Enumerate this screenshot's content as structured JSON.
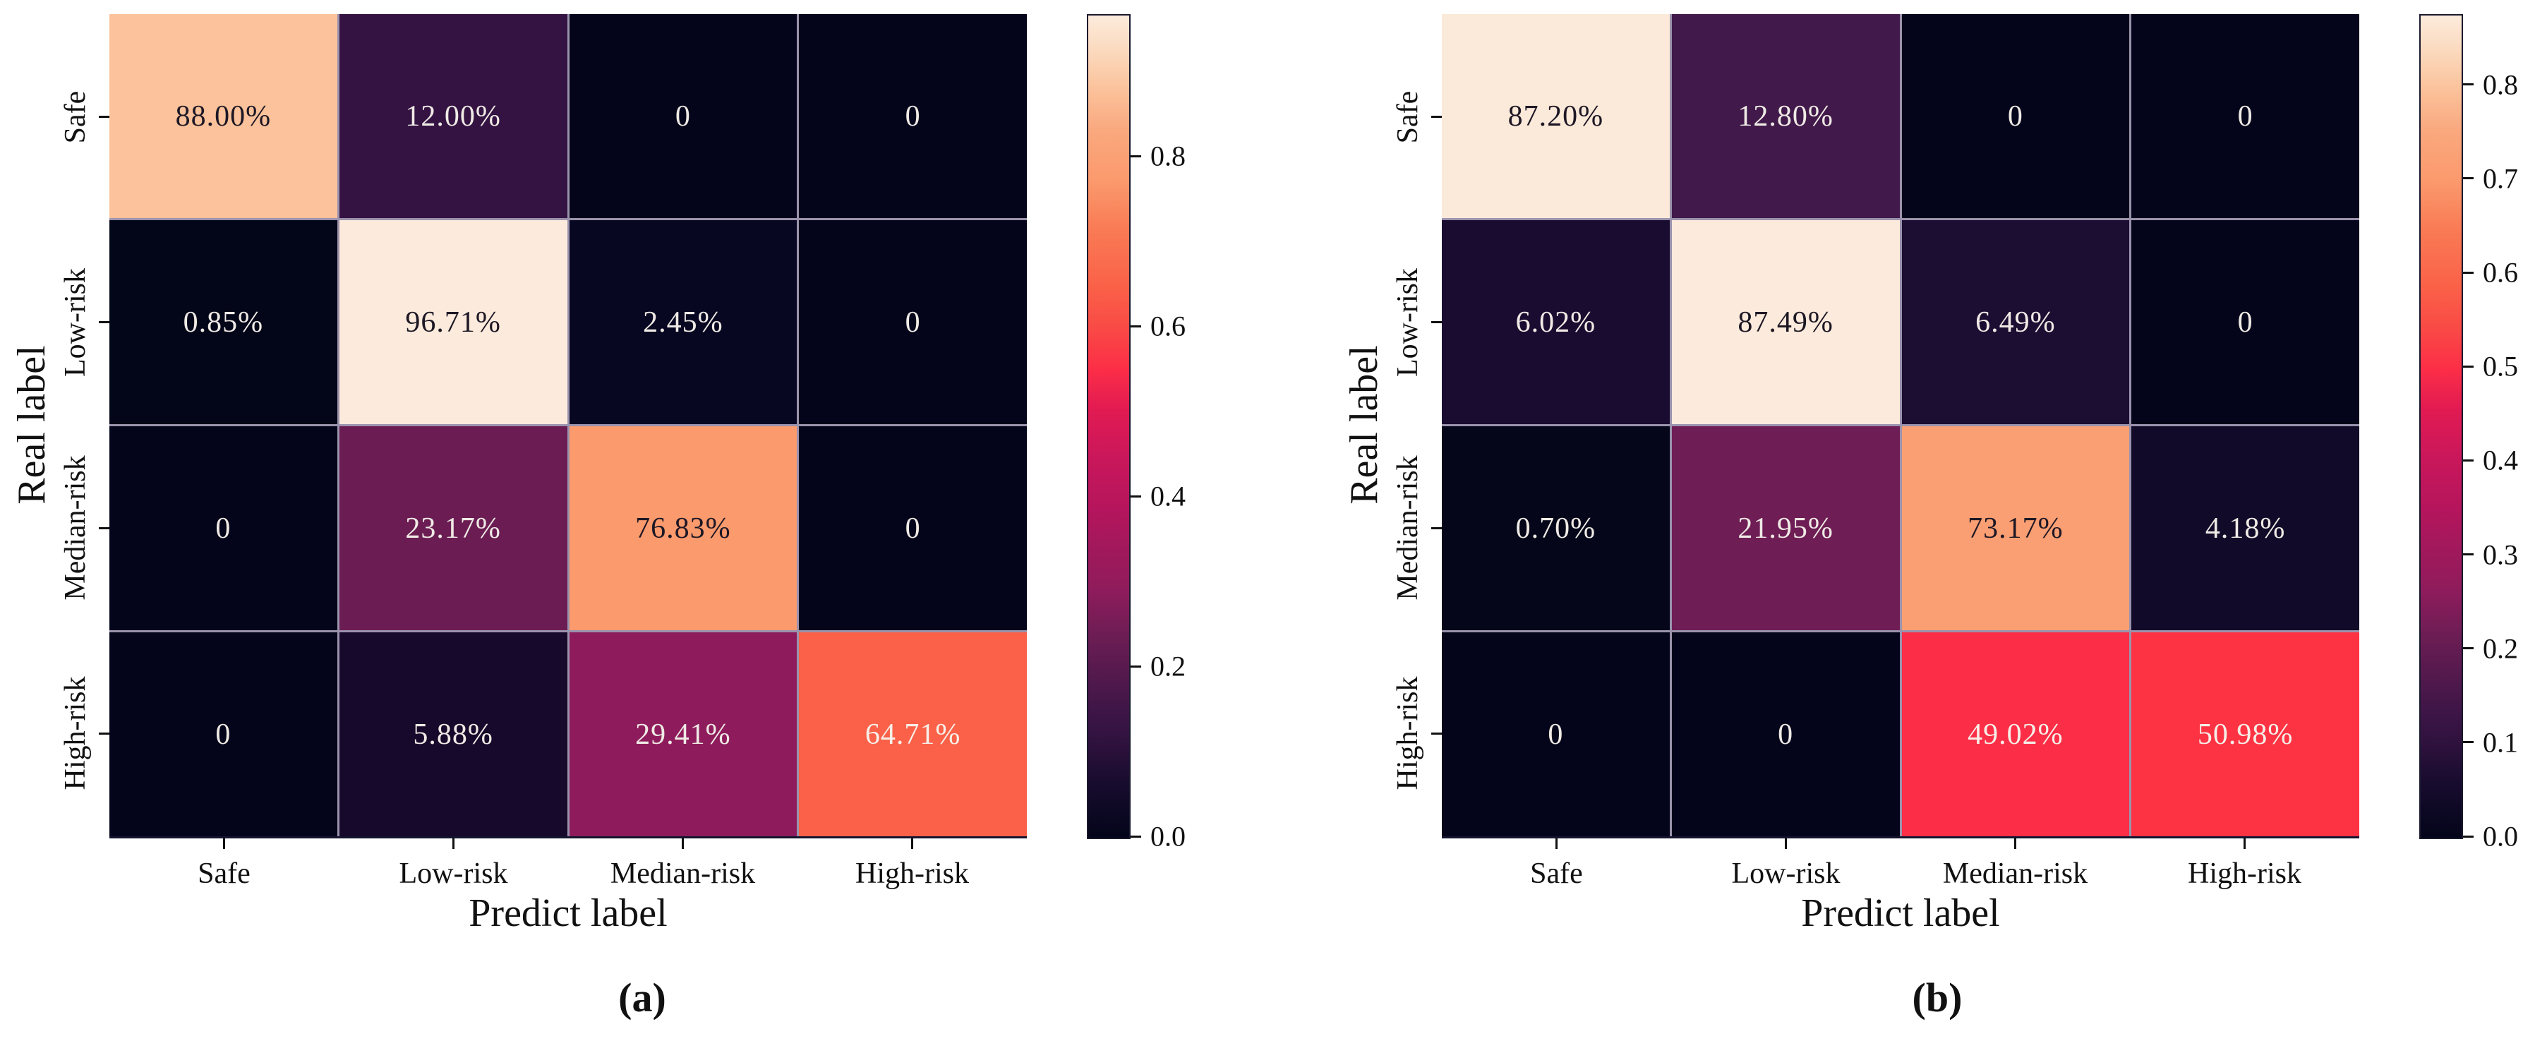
{
  "figure": {
    "background": "#ffffff",
    "separator_line_color": "#9B93AD",
    "axis_color": "#111111",
    "colormap_name": "rocket",
    "colormap_gradient_stops": [
      "#03051A 0%",
      "#190C2F 7%",
      "#31123F 12%",
      "#3C1546 15%",
      "#691D53 24%",
      "#8E1C5C 30%",
      "#B5155C 40%",
      "#C9175B 46%",
      "#E11A52 52%",
      "#FC2E47 57%",
      "#F94A46 62%",
      "#FA6148 67%",
      "#F97B55 74%",
      "#FB9A6D 80%",
      "#FAA87E 86%",
      "#FBC29B 91%",
      "#FBDBC0 96%",
      "#FCEBDC 100%"
    ],
    "panels": [
      {
        "caption": "(a)",
        "xlabel": "Predict label",
        "ylabel": "Real label",
        "x_categories": [
          "Safe",
          "Low-risk",
          "Median-risk",
          "High-risk"
        ],
        "y_categories": [
          "Safe",
          "Low-risk",
          "Median-risk",
          "High-risk"
        ],
        "cells": [
          [
            {
              "text": "88.00%",
              "bg": "#FBC29B",
              "fg": "#1E1825"
            },
            {
              "text": "12.00%",
              "bg": "#341343",
              "fg": "#EFEAE5"
            },
            {
              "text": "0",
              "bg": "#04051A",
              "fg": "#EFEAE5"
            },
            {
              "text": "0",
              "bg": "#04051A",
              "fg": "#EFEAE5"
            }
          ],
          [
            {
              "text": "0.85%",
              "bg": "#030518",
              "fg": "#EFEAE5"
            },
            {
              "text": "96.71%",
              "bg": "#FCEBDC",
              "fg": "#1E1825"
            },
            {
              "text": "2.45%",
              "bg": "#070722",
              "fg": "#EFEAE5"
            },
            {
              "text": "0",
              "bg": "#04051A",
              "fg": "#EFEAE5"
            }
          ],
          [
            {
              "text": "0",
              "bg": "#04051A",
              "fg": "#EFEAE5"
            },
            {
              "text": "23.17%",
              "bg": "#6B1D53",
              "fg": "#EFEAE5"
            },
            {
              "text": "76.83%",
              "bg": "#FB9A6D",
              "fg": "#1E1825"
            },
            {
              "text": "0",
              "bg": "#04051A",
              "fg": "#EFEAE5"
            }
          ],
          [
            {
              "text": "0",
              "bg": "#04051A",
              "fg": "#EFEAE5"
            },
            {
              "text": "5.88%",
              "bg": "#16092B",
              "fg": "#EFEAE5"
            },
            {
              "text": "29.41%",
              "bg": "#8E1C5C",
              "fg": "#EFEAE5"
            },
            {
              "text": "64.71%",
              "bg": "#FA6148",
              "fg": "#F6EFE8"
            }
          ]
        ],
        "colorbar_ticks": [
          {
            "label": "0.8",
            "pct_from_top": 17.28
          },
          {
            "label": "0.6",
            "pct_from_top": 37.96
          },
          {
            "label": "0.4",
            "pct_from_top": 58.64
          },
          {
            "label": "0.2",
            "pct_from_top": 79.32
          },
          {
            "label": "0.0",
            "pct_from_top": 100
          }
        ]
      },
      {
        "caption": "(b)",
        "xlabel": "Predict label",
        "ylabel": "Real label",
        "x_categories": [
          "Safe",
          "Low-risk",
          "Median-risk",
          "High-risk"
        ],
        "y_categories": [
          "Safe",
          "Low-risk",
          "Median-risk",
          "High-risk"
        ],
        "cells": [
          [
            {
              "text": "87.20%",
              "bg": "#FBE9D9",
              "fg": "#1E1825"
            },
            {
              "text": "12.80%",
              "bg": "#411A4B",
              "fg": "#EFEAE5"
            },
            {
              "text": "0",
              "bg": "#04051A",
              "fg": "#EFEAE5"
            },
            {
              "text": "0",
              "bg": "#04051A",
              "fg": "#EFEAE5"
            }
          ],
          [
            {
              "text": "6.02%",
              "bg": "#1A0C30",
              "fg": "#EFEAE5"
            },
            {
              "text": "87.49%",
              "bg": "#FCEBDC",
              "fg": "#1E1825"
            },
            {
              "text": "6.49%",
              "bg": "#1C0D32",
              "fg": "#EFEAE5"
            },
            {
              "text": "0",
              "bg": "#04051A",
              "fg": "#EFEAE5"
            }
          ],
          [
            {
              "text": "0.70%",
              "bg": "#050619",
              "fg": "#EFEAE5"
            },
            {
              "text": "21.95%",
              "bg": "#6E1D55",
              "fg": "#EFEAE5"
            },
            {
              "text": "73.17%",
              "bg": "#FA9F73",
              "fg": "#1E1825"
            },
            {
              "text": "4.18%",
              "bg": "#110A28",
              "fg": "#EFEAE5"
            }
          ],
          [
            {
              "text": "0",
              "bg": "#04051A",
              "fg": "#EFEAE5"
            },
            {
              "text": "0",
              "bg": "#04051A",
              "fg": "#EFEAE5"
            },
            {
              "text": "49.02%",
              "bg": "#FC2E47",
              "fg": "#F6EFE8"
            },
            {
              "text": "50.98%",
              "bg": "#FD3343",
              "fg": "#F6EFE8"
            }
          ]
        ],
        "colorbar_ticks": [
          {
            "label": "0.8",
            "pct_from_top": 8.56
          },
          {
            "label": "0.7",
            "pct_from_top": 19.99
          },
          {
            "label": "0.6",
            "pct_from_top": 31.42
          },
          {
            "label": "0.5",
            "pct_from_top": 42.85
          },
          {
            "label": "0.4",
            "pct_from_top": 54.28
          },
          {
            "label": "0.3",
            "pct_from_top": 65.71
          },
          {
            "label": "0.2",
            "pct_from_top": 77.14
          },
          {
            "label": "0.1",
            "pct_from_top": 88.57
          },
          {
            "label": "0.0",
            "pct_from_top": 100
          }
        ]
      }
    ]
  },
  "chart_data": [
    {
      "type": "heatmap",
      "subtype": "confusion-matrix",
      "caption": "(a)",
      "xlabel": "Predict label",
      "ylabel": "Real label",
      "x_categories": [
        "Safe",
        "Low-risk",
        "Median-risk",
        "High-risk"
      ],
      "y_categories": [
        "Safe",
        "Low-risk",
        "Median-risk",
        "High-risk"
      ],
      "values_percent": [
        [
          88.0,
          12.0,
          0,
          0
        ],
        [
          0.85,
          96.71,
          2.45,
          0
        ],
        [
          0,
          23.17,
          76.83,
          0
        ],
        [
          0,
          5.88,
          29.41,
          64.71
        ]
      ],
      "colormap": "rocket",
      "colorbar_range": [
        0.0,
        0.9671
      ],
      "colorbar_tick_values": [
        0.0,
        0.2,
        0.4,
        0.6,
        0.8
      ],
      "grid": false,
      "legend": "colorbar-right"
    },
    {
      "type": "heatmap",
      "subtype": "confusion-matrix",
      "caption": "(b)",
      "xlabel": "Predict label",
      "ylabel": "Real label",
      "x_categories": [
        "Safe",
        "Low-risk",
        "Median-risk",
        "High-risk"
      ],
      "y_categories": [
        "Safe",
        "Low-risk",
        "Median-risk",
        "High-risk"
      ],
      "values_percent": [
        [
          87.2,
          12.8,
          0,
          0
        ],
        [
          6.02,
          87.49,
          6.49,
          0
        ],
        [
          0.7,
          21.95,
          73.17,
          4.18
        ],
        [
          0,
          0,
          49.02,
          50.98
        ]
      ],
      "colormap": "rocket",
      "colorbar_range": [
        0.0,
        0.8749
      ],
      "colorbar_tick_values": [
        0.0,
        0.1,
        0.2,
        0.3,
        0.4,
        0.5,
        0.6,
        0.7,
        0.8
      ],
      "grid": false,
      "legend": "colorbar-right"
    }
  ]
}
